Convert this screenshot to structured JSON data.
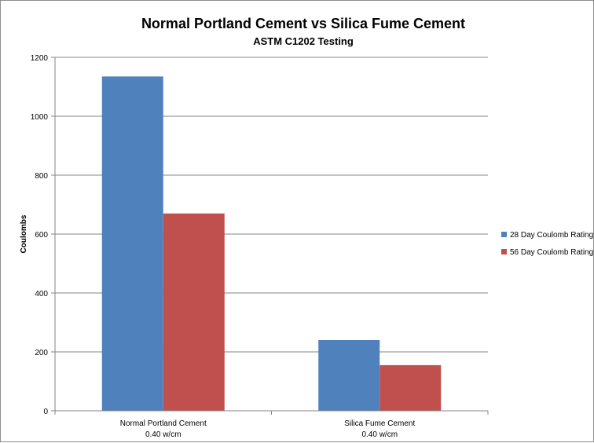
{
  "chart_data": {
    "type": "bar",
    "title": "Normal Portland Cement vs Silica Fume Cement",
    "subtitle": "ASTM C1202 Testing",
    "xlabel": "",
    "ylabel": "Coulombs",
    "ylim": [
      0,
      1200
    ],
    "yticks": [
      0,
      200,
      400,
      600,
      800,
      1000,
      1200
    ],
    "ytick_labels": [
      "0",
      "200",
      "400",
      "600",
      "800",
      "1000",
      "1200"
    ],
    "grid": true,
    "legend_position": "right",
    "categories": [
      {
        "line1": "Normal Portland Cement",
        "line2": "0.40 w/cm"
      },
      {
        "line1": "Silica Fume Cement",
        "line2": "0.40 w/cm"
      }
    ],
    "series": [
      {
        "name": "28 Day Coulomb Rating",
        "color": "#4F81BD",
        "values": [
          1135,
          240
        ]
      },
      {
        "name": "56 Day Coulomb Rating",
        "color": "#C0504D",
        "values": [
          670,
          155
        ]
      }
    ]
  }
}
